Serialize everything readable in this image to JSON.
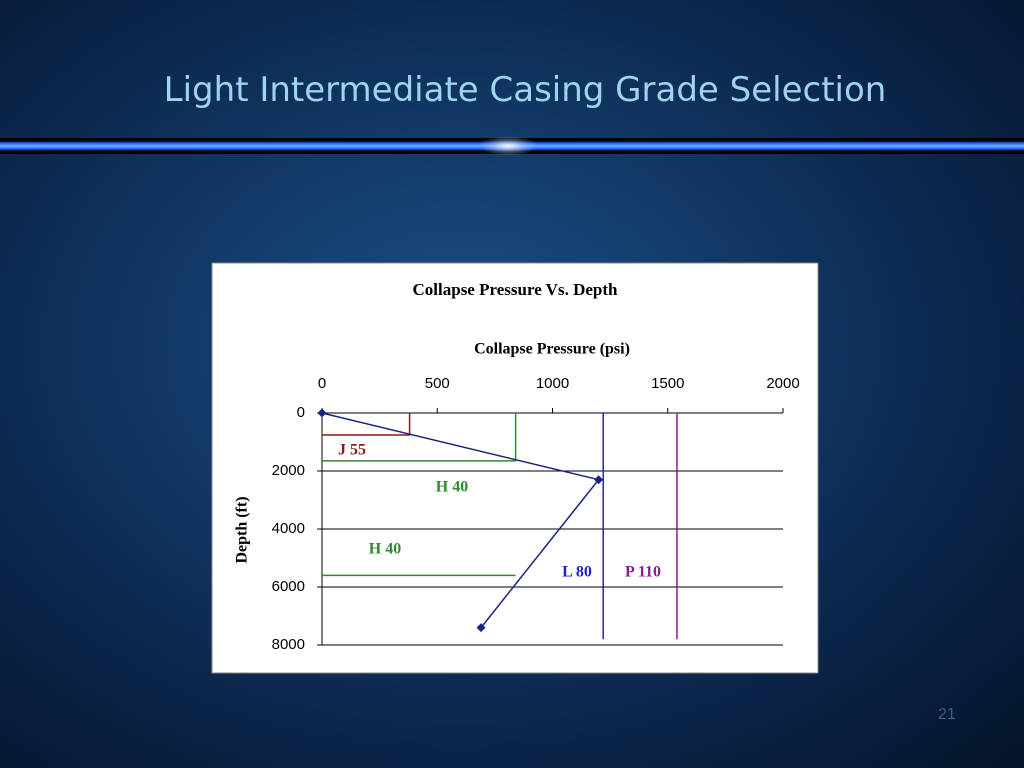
{
  "slide": {
    "title": "Light Intermediate Casing Grade Selection",
    "page_number": "21"
  },
  "chart_data": {
    "type": "line",
    "title": "Collapse Pressure Vs. Depth",
    "x_label": "Collapse Pressure (psi)",
    "y_label": "Depth (ft)",
    "x": [
      0,
      1200,
      690
    ],
    "values": [
      0,
      2300,
      7400
    ],
    "color": "#1a237e",
    "marker": "diamond",
    "xlim": [
      0,
      2000
    ],
    "xticks": [
      0,
      500,
      1000,
      1500,
      2000
    ],
    "x_axis_position": "top",
    "ylim": [
      0,
      8000
    ],
    "yticks": [
      0,
      2000,
      4000,
      6000,
      8000
    ],
    "y_inverted": true,
    "grid": true,
    "grade_lines": [
      {
        "label": "J 55",
        "color": "#8b1a1a",
        "x": [
          0,
          380,
          380
        ],
        "values": [
          760,
          760,
          0
        ]
      },
      {
        "label": "H 40",
        "color": "#2e8b2e",
        "x": [
          0,
          840,
          840
        ],
        "values": [
          1650,
          1650,
          0
        ]
      },
      {
        "label": "H 40",
        "color": "#2e8b2e",
        "x": [
          0,
          840
        ],
        "values": [
          5600,
          5600
        ]
      },
      {
        "label": "L 80",
        "color": "#2222cc",
        "x": [
          1220,
          1220
        ],
        "values": [
          0,
          7800
        ]
      },
      {
        "label": "P 110",
        "color": "#8b1a8b",
        "x": [
          1540,
          1540
        ],
        "values": [
          0,
          7800
        ]
      }
    ]
  }
}
